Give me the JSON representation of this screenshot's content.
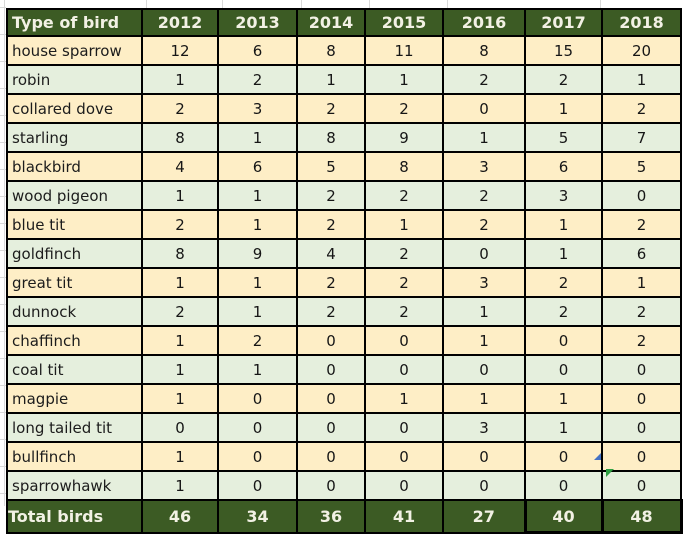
{
  "table": {
    "header_label": "Type of bird",
    "years": [
      "2012",
      "2013",
      "2014",
      "2015",
      "2016",
      "2017",
      "2018"
    ],
    "rows": [
      {
        "name": "house sparrow",
        "values": [
          12,
          6,
          8,
          11,
          8,
          15,
          20
        ]
      },
      {
        "name": "robin",
        "values": [
          1,
          2,
          1,
          1,
          2,
          2,
          1
        ]
      },
      {
        "name": "collared dove",
        "values": [
          2,
          3,
          2,
          2,
          0,
          1,
          2
        ]
      },
      {
        "name": "starling",
        "values": [
          8,
          1,
          8,
          9,
          1,
          5,
          7
        ]
      },
      {
        "name": "blackbird",
        "values": [
          4,
          6,
          5,
          8,
          3,
          6,
          5
        ]
      },
      {
        "name": "wood pigeon",
        "values": [
          1,
          1,
          2,
          2,
          2,
          3,
          0
        ]
      },
      {
        "name": "blue tit",
        "values": [
          2,
          1,
          2,
          1,
          2,
          1,
          2
        ]
      },
      {
        "name": "goldfinch",
        "values": [
          8,
          9,
          4,
          2,
          0,
          1,
          6
        ]
      },
      {
        "name": "great tit",
        "values": [
          1,
          1,
          2,
          2,
          3,
          2,
          1
        ]
      },
      {
        "name": "dunnock",
        "values": [
          2,
          1,
          2,
          2,
          1,
          2,
          2
        ]
      },
      {
        "name": "chaffinch",
        "values": [
          1,
          2,
          0,
          0,
          1,
          0,
          2
        ]
      },
      {
        "name": "coal tit",
        "values": [
          1,
          1,
          0,
          0,
          0,
          0,
          0
        ]
      },
      {
        "name": "magpie",
        "values": [
          1,
          0,
          0,
          1,
          1,
          1,
          0
        ]
      },
      {
        "name": "long tailed tit",
        "values": [
          0,
          0,
          0,
          0,
          3,
          1,
          0
        ]
      },
      {
        "name": "bullfinch",
        "values": [
          1,
          0,
          0,
          0,
          0,
          0,
          0
        ]
      },
      {
        "name": "sparrowhawk",
        "values": [
          1,
          0,
          0,
          0,
          0,
          0,
          0
        ]
      }
    ],
    "total_label": "Total birds",
    "totals": [
      46,
      34,
      36,
      41,
      27,
      40,
      48
    ]
  },
  "colors": {
    "header_bg": "#3c5b24",
    "header_text": "#f2f1e4",
    "row_cream": "#feeec6",
    "row_green": "#e5efdd",
    "border": "#000000",
    "gridline": "#d9d9d9",
    "marker_blue": "#4472c4",
    "indicator_green": "#2e9e41"
  },
  "chart_data": {
    "type": "table",
    "columns": [
      "Type of bird",
      "2012",
      "2013",
      "2014",
      "2015",
      "2016",
      "2017",
      "2018"
    ],
    "rows": [
      [
        "house sparrow",
        12,
        6,
        8,
        11,
        8,
        15,
        20
      ],
      [
        "robin",
        1,
        2,
        1,
        1,
        2,
        2,
        1
      ],
      [
        "collared dove",
        2,
        3,
        2,
        2,
        0,
        1,
        2
      ],
      [
        "starling",
        8,
        1,
        8,
        9,
        1,
        5,
        7
      ],
      [
        "blackbird",
        4,
        6,
        5,
        8,
        3,
        6,
        5
      ],
      [
        "wood pigeon",
        1,
        1,
        2,
        2,
        2,
        3,
        0
      ],
      [
        "blue tit",
        2,
        1,
        2,
        1,
        2,
        1,
        2
      ],
      [
        "goldfinch",
        8,
        9,
        4,
        2,
        0,
        1,
        6
      ],
      [
        "great tit",
        1,
        1,
        2,
        2,
        3,
        2,
        1
      ],
      [
        "dunnock",
        2,
        1,
        2,
        2,
        1,
        2,
        2
      ],
      [
        "chaffinch",
        1,
        2,
        0,
        0,
        1,
        0,
        2
      ],
      [
        "coal tit",
        1,
        1,
        0,
        0,
        0,
        0,
        0
      ],
      [
        "magpie",
        1,
        0,
        0,
        1,
        1,
        1,
        0
      ],
      [
        "long tailed tit",
        0,
        0,
        0,
        0,
        3,
        1,
        0
      ],
      [
        "bullfinch",
        1,
        0,
        0,
        0,
        0,
        0,
        0
      ],
      [
        "sparrowhawk",
        1,
        0,
        0,
        0,
        0,
        0,
        0
      ]
    ],
    "footer": [
      "Total birds",
      46,
      34,
      36,
      41,
      27,
      40,
      48
    ]
  }
}
